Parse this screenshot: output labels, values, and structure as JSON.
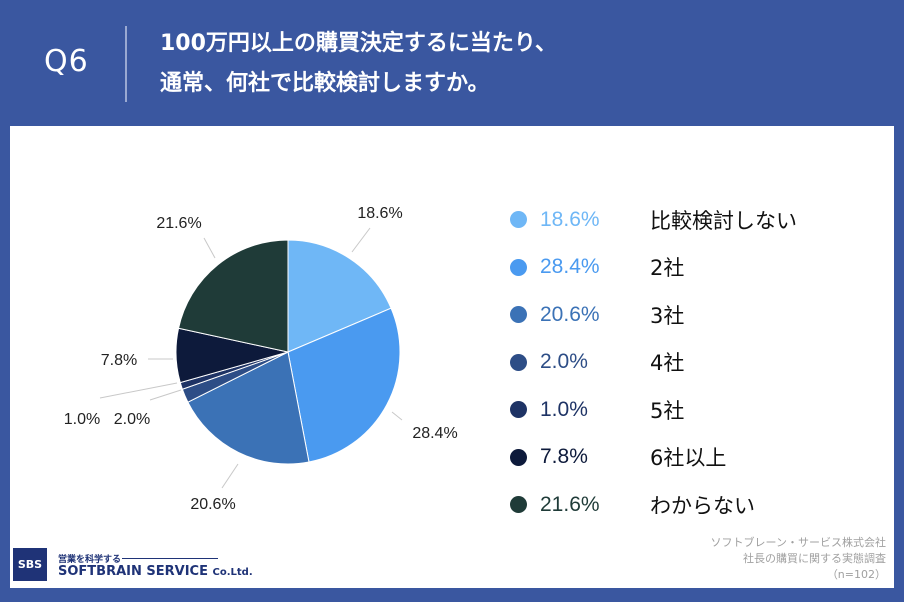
{
  "header": {
    "question_number": "Q6",
    "title_line1": "100万円以上の購買決定するに当たり、",
    "title_line2": "通常、何社で比較検討しますか。"
  },
  "chart_data": {
    "type": "pie",
    "start": "12 o'clock",
    "direction": "clockwise",
    "slices": [
      {
        "label": "比較検討しない",
        "value": 18.6,
        "display": "18.6%",
        "color": "#6fb7f6"
      },
      {
        "label": "2社",
        "value": 28.4,
        "display": "28.4%",
        "color": "#4a9af0"
      },
      {
        "label": "3社",
        "value": 20.6,
        "display": "20.6%",
        "color": "#3b72b6"
      },
      {
        "label": "4社",
        "value": 2.0,
        "display": "2.0%",
        "color": "#2d4d86"
      },
      {
        "label": "5社",
        "value": 1.0,
        "display": "1.0%",
        "color": "#1e3365"
      },
      {
        "label": "6社以上",
        "value": 7.8,
        "display": "7.8%",
        "color": "#0d1a3b"
      },
      {
        "label": "わからない",
        "value": 21.6,
        "display": "21.6%",
        "color": "#1f3b38"
      }
    ]
  },
  "footer": {
    "source_line1": "ソフトブレーン・サービス株式会社",
    "source_line2": "社長の購買に関する実態調査",
    "source_line3": "（n=102）"
  },
  "logo": {
    "mark": "SBS",
    "tagline": "営業を科学する",
    "company": "SOFTBRAIN SERVICE",
    "suffix": "Co.Ltd."
  }
}
